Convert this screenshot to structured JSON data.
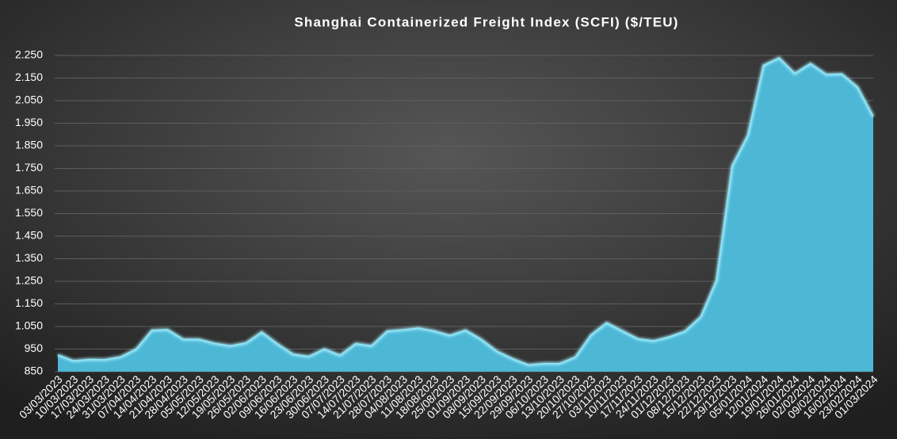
{
  "chart_data": {
    "type": "area",
    "title": "Shanghai  Containerized  Freight  Index  (SCFI) ($/TEU)",
    "categories": [
      "03/03/2023",
      "10/03/2023",
      "17/03/2023",
      "24/03/2023",
      "31/03/2023",
      "07/04/2023",
      "14/04/2023",
      "21/04/2023",
      "28/04/2023",
      "05/05/2023",
      "12/05/2023",
      "19/05/2023",
      "26/05/2023",
      "02/06/2023",
      "09/06/2023",
      "16/06/2023",
      "23/06/2023",
      "30/06/2023",
      "07/07/2023",
      "14/07/2023",
      "21/07/2023",
      "28/07/2023",
      "04/08/2023",
      "11/08/2023",
      "18/08/2023",
      "25/08/2023",
      "01/09/2023",
      "08/09/2023",
      "15/09/2023",
      "22/09/2023",
      "29/09/2023",
      "06/10/2023",
      "13/10/2023",
      "20/10/2023",
      "27/10/2023",
      "03/11/2023",
      "10/11/2023",
      "17/11/2023",
      "24/11/2023",
      "01/12/2023",
      "08/12/2023",
      "15/12/2023",
      "22/12/2023",
      "29/12/2023",
      "05/01/2024",
      "12/01/2024",
      "19/01/2024",
      "26/01/2024",
      "02/02/2024",
      "09/02/2024",
      "16/02/2024",
      "23/02/2024",
      "01/03/2024"
    ],
    "values": [
      924,
      898,
      904,
      903,
      915,
      950,
      1033,
      1036,
      993,
      993,
      975,
      964,
      977,
      1025,
      973,
      927,
      917,
      950,
      922,
      974,
      964,
      1029,
      1035,
      1043,
      1030,
      1010,
      1033,
      993,
      940,
      907,
      880,
      886,
      886,
      914,
      1012,
      1066,
      1030,
      995,
      986,
      1004,
      1029,
      1093,
      1254,
      1760,
      1896,
      2206,
      2239,
      2170,
      2214,
      2166,
      2168,
      2110,
      1980
    ],
    "color": "#4db7d6",
    "ylim": [
      850,
      2250
    ],
    "yticks": [
      850,
      950,
      {
        "value": 1050,
        "label": "1.050"
      },
      {
        "value": 1150,
        "label": "1.150"
      },
      {
        "value": 1250,
        "label": "1.250"
      },
      {
        "value": 1350,
        "label": "1.350"
      },
      {
        "value": 1450,
        "label": "1.450"
      },
      {
        "value": 1550,
        "label": "1.550"
      },
      {
        "value": 1650,
        "label": "1.650"
      },
      {
        "value": 1750,
        "label": "1.750"
      },
      {
        "value": 1850,
        "label": "1.850"
      },
      {
        "value": 1950,
        "label": "1.950"
      },
      {
        "value": 2050,
        "label": "2.050"
      },
      {
        "value": 2150,
        "label": "2.150"
      },
      {
        "value": 2250,
        "label": "2.250"
      }
    ],
    "grid": true
  }
}
